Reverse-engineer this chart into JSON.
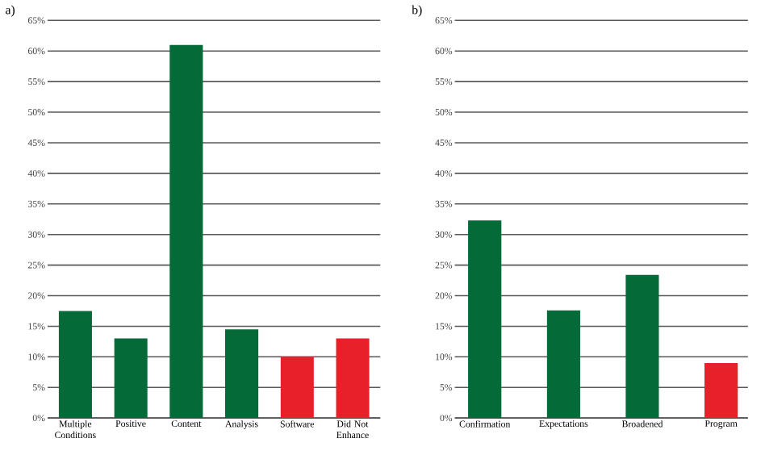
{
  "chart_data": [
    {
      "type": "bar",
      "title": "a)",
      "categories": [
        "Multiple Conditions",
        "Positive",
        "Content",
        "Analysis",
        "Software",
        "Did Not Enhance"
      ],
      "values": [
        17.5,
        13,
        61,
        14.5,
        10,
        13
      ],
      "colors": [
        "#046a38",
        "#046a38",
        "#046a38",
        "#046a38",
        "#e8202a",
        "#e8202a"
      ],
      "ylim": [
        0,
        65
      ],
      "yticks": [
        {
          "value": 0,
          "label": "0%"
        },
        {
          "value": 5,
          "label": "5%"
        },
        {
          "value": 10,
          "label": "10%"
        },
        {
          "value": 15,
          "label": "15%"
        },
        {
          "value": 20,
          "label": "20%"
        },
        {
          "value": 25,
          "label": "25%"
        },
        {
          "value": 30,
          "label": "30%"
        },
        {
          "value": 35,
          "label": "35%"
        },
        {
          "value": 40,
          "label": "40%"
        },
        {
          "value": 45,
          "label": "45%"
        },
        {
          "value": 50,
          "label": "50%"
        },
        {
          "value": 55,
          "label": "55%"
        },
        {
          "value": 60,
          "label": "60%"
        },
        {
          "value": 65,
          "label": "65%"
        }
      ],
      "grid": "y"
    },
    {
      "type": "bar",
      "title": "b)",
      "categories": [
        "Confirmation",
        "Expectations",
        "Broadened",
        "Program"
      ],
      "values": [
        32.3,
        17.6,
        23.4,
        9
      ],
      "colors": [
        "#046a38",
        "#046a38",
        "#046a38",
        "#e8202a"
      ],
      "ylim": [
        0,
        65
      ],
      "yticks": [
        {
          "value": 0,
          "label": "0%"
        },
        {
          "value": 5,
          "label": "5%"
        },
        {
          "value": 10,
          "label": "10%"
        },
        {
          "value": 15,
          "label": "15%"
        },
        {
          "value": 20,
          "label": "20%"
        },
        {
          "value": 25,
          "label": "25%"
        },
        {
          "value": 30,
          "label": "30%"
        },
        {
          "value": 35,
          "label": "35%"
        },
        {
          "value": 40,
          "label": "40%"
        },
        {
          "value": 45,
          "label": "45%"
        },
        {
          "value": 50,
          "label": "50%"
        },
        {
          "value": 55,
          "label": "55%"
        },
        {
          "value": 60,
          "label": "60%"
        },
        {
          "value": 65,
          "label": "65%"
        }
      ],
      "grid": "y"
    }
  ]
}
